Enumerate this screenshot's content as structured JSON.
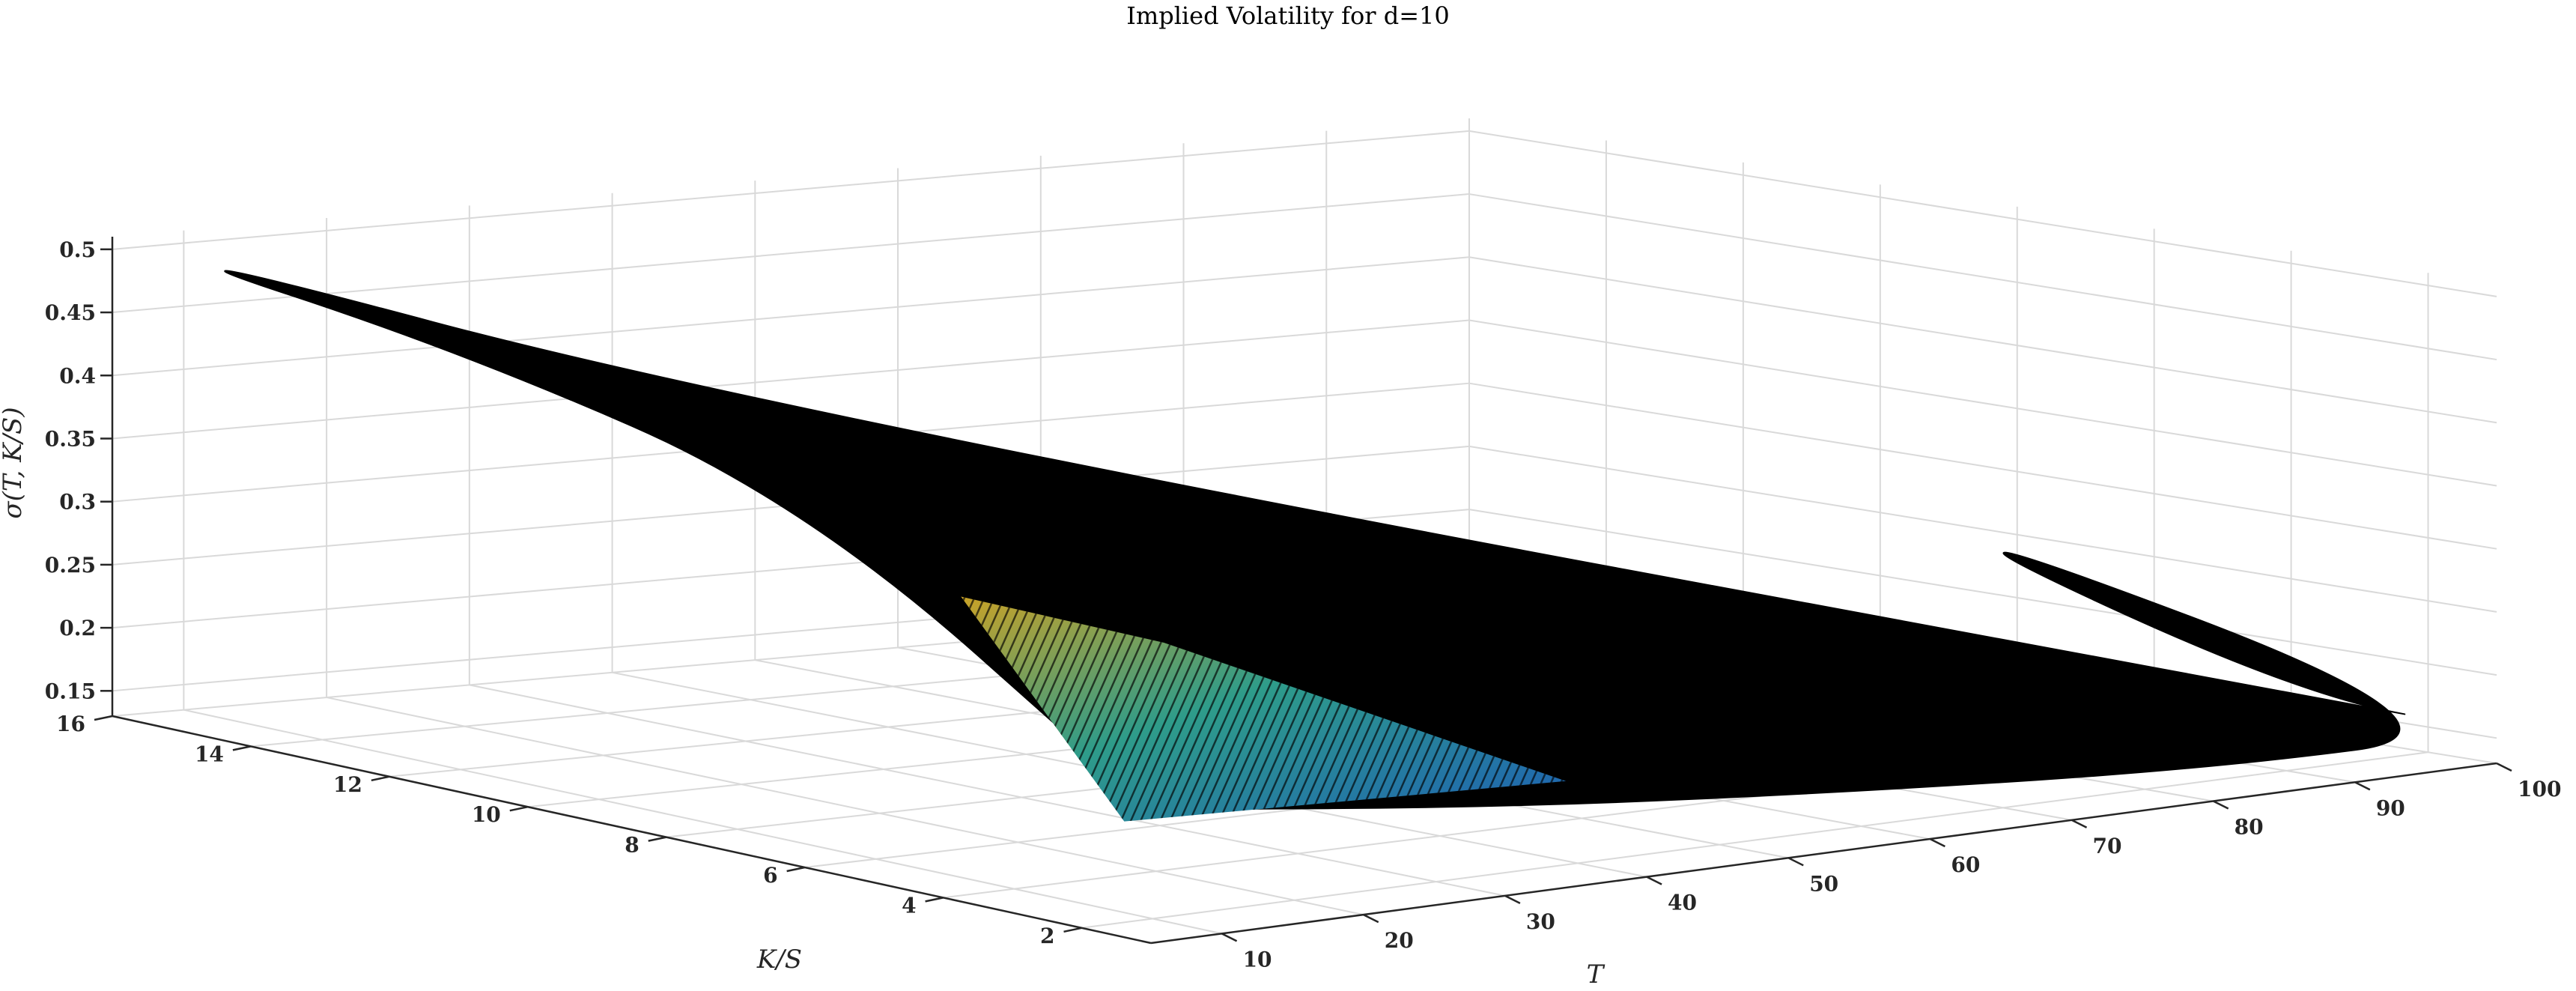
{
  "chart_data": {
    "type": "surface",
    "title": "Implied Volatility for d=10",
    "xlabel": "T",
    "ylabel": "K/S",
    "zlabel": "σ(T, K/S)",
    "x_ticks": [
      "10",
      "20",
      "30",
      "40",
      "50",
      "60",
      "70",
      "80",
      "90",
      "100"
    ],
    "y_ticks": [
      "2",
      "4",
      "6",
      "8",
      "10",
      "12",
      "14",
      "16"
    ],
    "z_ticks": [
      "0.15",
      "0.2",
      "0.25",
      "0.3",
      "0.35",
      "0.4",
      "0.45",
      "0.5"
    ],
    "xlim": [
      5,
      100
    ],
    "ylim": [
      1,
      16
    ],
    "zlim": [
      0.13,
      0.51
    ],
    "grid": true,
    "colormap": "parula",
    "surface_color": "#000000",
    "surface_points": {
      "near_edge_K1": [
        {
          "T": 5,
          "sigma": 0.236
        },
        {
          "T": 30,
          "sigma": 0.2
        },
        {
          "T": 55,
          "sigma": 0.175
        },
        {
          "T": 80,
          "sigma": 0.156
        },
        {
          "T": 100,
          "sigma": 0.155
        }
      ],
      "left_edge_T5": [
        {
          "K": 1,
          "sigma": 0.236
        },
        {
          "K": 6,
          "sigma": 0.42
        },
        {
          "K": 11,
          "sigma": 0.48
        },
        {
          "K": 16,
          "sigma": 0.51
        }
      ],
      "far_edge_K16": [
        {
          "T": 5,
          "sigma": 0.51
        },
        {
          "T": 50,
          "sigma": 0.33
        },
        {
          "T": 100,
          "sigma": 0.31
        }
      ],
      "right_edge_T100": [
        {
          "K": 16,
          "sigma": 0.31
        },
        {
          "K": 10,
          "sigma": 0.26
        },
        {
          "K": 4,
          "sigma": 0.16
        },
        {
          "K": 1,
          "sigma": 0.155
        }
      ]
    }
  }
}
